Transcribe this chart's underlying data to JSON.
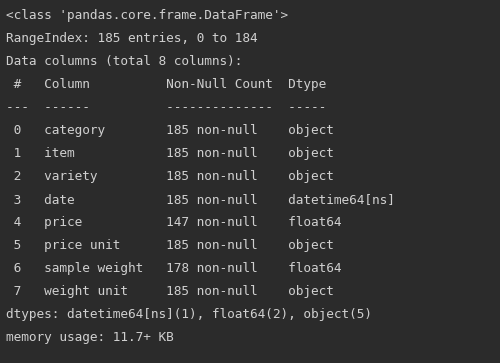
{
  "bg_color": "#2b2b2b",
  "text_color": "#d0d0d0",
  "font_family": "monospace",
  "font_size": 9.2,
  "lines": [
    "<class 'pandas.core.frame.DataFrame'>",
    "RangeIndex: 185 entries, 0 to 184",
    "Data columns (total 8 columns):",
    " #   Column          Non-Null Count  Dtype          ",
    "---  ------          --------------  -----          ",
    " 0   category        185 non-null    object         ",
    " 1   item            185 non-null    object         ",
    " 2   variety         185 non-null    object         ",
    " 3   date            185 non-null    datetime64[ns] ",
    " 4   price           147 non-null    float64        ",
    " 5   price unit      185 non-null    object         ",
    " 6   sample weight   178 non-null    float64        ",
    " 7   weight unit     185 non-null    object         ",
    "dtypes: datetime64[ns](1), float64(2), object(5)",
    "memory usage: 11.7+ KB"
  ]
}
